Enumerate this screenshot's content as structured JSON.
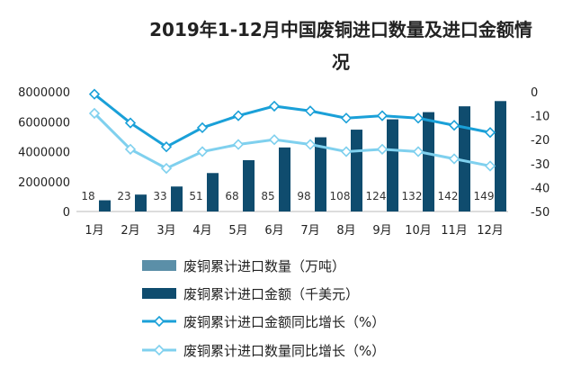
{
  "chart_data": {
    "type": "bar",
    "title_line1": "2019年1-12月中国废铜进口数量及进口金额情",
    "title_line2": "况",
    "categories": [
      "1月",
      "2月",
      "3月",
      "4月",
      "5月",
      "6月",
      "7月",
      "8月",
      "9月",
      "10月",
      "11月",
      "12月"
    ],
    "y_left_ticks": [
      "8000000",
      "6000000",
      "4000000",
      "2000000",
      "0"
    ],
    "y_right_ticks": [
      "0",
      "-10",
      "-20",
      "-30",
      "-40",
      "-50"
    ],
    "ylim_left": [
      0,
      8000000
    ],
    "ylim_right": [
      -50,
      0
    ],
    "grid": false,
    "legend_position": "bottom",
    "series": [
      {
        "name": "废铜累计进口数量（万吨）",
        "axis": "left",
        "kind": "bar",
        "color": "#5b8fa8",
        "values": [
          18,
          23,
          33,
          51,
          68,
          85,
          98,
          108,
          124,
          132,
          142,
          149
        ],
        "labels": [
          "18",
          "23",
          "33",
          "51",
          "68",
          "85",
          "98",
          "108",
          "124",
          "132",
          "142",
          "149"
        ]
      },
      {
        "name": "废铜累计进口金额（千美元）",
        "axis": "left",
        "kind": "bar",
        "color": "#0f4c6e",
        "values": [
          750000,
          1130000,
          1670000,
          2570000,
          3430000,
          4280000,
          4960000,
          5470000,
          6160000,
          6640000,
          7030000,
          7380000
        ]
      },
      {
        "name": "废铜累计进口金额同比增长（%）",
        "axis": "right",
        "kind": "line",
        "color": "#1aa0d8",
        "values": [
          -1,
          -13,
          -23,
          -15,
          -10,
          -6,
          -8,
          -11,
          -10,
          -11,
          -14,
          -17
        ]
      },
      {
        "name": "废铜累计进口数量同比增长（%）",
        "axis": "right",
        "kind": "line",
        "color": "#7fd0ee",
        "values": [
          -9,
          -24,
          -32,
          -25,
          -22,
          -20,
          -22,
          -25,
          -24,
          -25,
          -28,
          -31
        ]
      }
    ]
  }
}
